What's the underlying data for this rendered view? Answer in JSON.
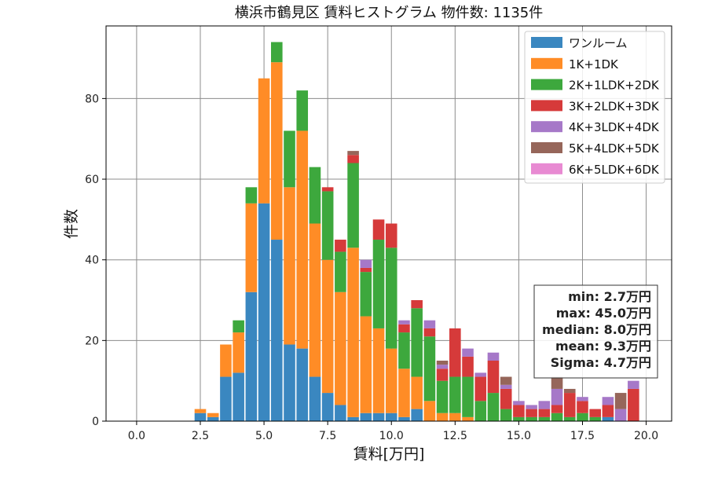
{
  "chart_data": {
    "type": "bar",
    "stacked": true,
    "title": "横浜市鶴見区 賃料ヒストグラム 物件数: 1135件",
    "xlabel": "賃料[万円]",
    "ylabel": "件数",
    "xlim": [
      -1.2,
      21.0
    ],
    "ylim": [
      0,
      98
    ],
    "xticks": [
      0.0,
      2.5,
      5.0,
      7.5,
      10.0,
      12.5,
      15.0,
      17.5,
      20.0
    ],
    "xtick_labels": [
      "0.0",
      "2.5",
      "5.0",
      "7.5",
      "10.0",
      "12.5",
      "15.0",
      "17.5",
      "20.0"
    ],
    "yticks": [
      0,
      20,
      40,
      60,
      80
    ],
    "ytick_labels": [
      "0",
      "20",
      "40",
      "60",
      "80"
    ],
    "grid": true,
    "legend_position": "top-right",
    "bin_width": 0.5,
    "x": [
      2.5,
      3.0,
      3.5,
      4.0,
      4.5,
      5.0,
      5.5,
      6.0,
      6.5,
      7.0,
      7.5,
      8.0,
      8.5,
      9.0,
      9.5,
      10.0,
      10.5,
      11.0,
      11.5,
      12.0,
      12.5,
      13.0,
      13.5,
      14.0,
      14.5,
      15.0,
      15.5,
      16.0,
      16.5,
      17.0,
      17.5,
      18.0,
      18.5,
      19.0,
      19.5
    ],
    "series": [
      {
        "name": "ワンルーム",
        "color": "#3a87c0",
        "values": [
          2,
          1,
          11,
          12,
          32,
          54,
          45,
          19,
          18,
          11,
          7,
          4,
          1,
          2,
          2,
          2,
          1,
          3,
          0,
          0,
          0,
          0,
          0,
          0,
          0,
          0,
          0,
          0,
          0,
          0,
          0,
          0,
          1,
          0,
          0
        ]
      },
      {
        "name": "1K+1DK",
        "color": "#ff8c26",
        "values": [
          1,
          1,
          8,
          10,
          22,
          31,
          44,
          39,
          54,
          38,
          33,
          28,
          42,
          24,
          21,
          16,
          12,
          8,
          5,
          2,
          2,
          1,
          0,
          0,
          0,
          0,
          0,
          0,
          0,
          0,
          0,
          0,
          0,
          0,
          0
        ]
      },
      {
        "name": "2K+1LDK+2DK",
        "color": "#3da83d",
        "values": [
          0,
          0,
          0,
          3,
          4,
          0,
          5,
          14,
          10,
          14,
          17,
          10,
          21,
          11,
          22,
          25,
          9,
          17,
          16,
          8,
          9,
          10,
          5,
          7,
          3,
          1,
          1,
          1,
          2,
          1,
          2,
          1,
          0,
          0,
          0
        ]
      },
      {
        "name": "3K+2LDK+3DK",
        "color": "#d63a3a",
        "values": [
          0,
          0,
          0,
          0,
          0,
          0,
          0,
          0,
          0,
          0,
          1,
          3,
          2,
          1,
          5,
          6,
          2,
          2,
          2,
          3,
          12,
          5,
          6,
          8,
          5,
          3,
          2,
          2,
          2,
          6,
          3,
          2,
          3,
          0,
          8
        ]
      },
      {
        "name": "4K+3LDK+4DK",
        "color": "#a678c8",
        "values": [
          0,
          0,
          0,
          0,
          0,
          0,
          0,
          0,
          0,
          0,
          0,
          0,
          0,
          2,
          0,
          0,
          1,
          0,
          2,
          1,
          0,
          2,
          1,
          2,
          1,
          1,
          1,
          2,
          4,
          0,
          1,
          0,
          2,
          3,
          2
        ]
      },
      {
        "name": "5K+4LDK+5DK",
        "color": "#96665a",
        "values": [
          0,
          0,
          0,
          0,
          0,
          0,
          0,
          0,
          0,
          0,
          0,
          0,
          1,
          0,
          0,
          0,
          0,
          0,
          0,
          1,
          0,
          0,
          0,
          0,
          2,
          0,
          0,
          0,
          3,
          1,
          0,
          0,
          0,
          4,
          0
        ]
      },
      {
        "name": "6K+5LDK+6DK",
        "color": "#e88ad2",
        "values": [
          0,
          0,
          0,
          0,
          0,
          0,
          0,
          0,
          0,
          0,
          0,
          0,
          0,
          0,
          0,
          0,
          0,
          0,
          0,
          0,
          0,
          0,
          0,
          0,
          0,
          0,
          0,
          0,
          0,
          0,
          0,
          0,
          0,
          0,
          0
        ]
      }
    ],
    "stats": [
      "min: 2.7万円",
      "max: 45.0万円",
      "median: 8.0万円",
      "mean: 9.3万円",
      "Sigma: 4.7万円"
    ]
  }
}
